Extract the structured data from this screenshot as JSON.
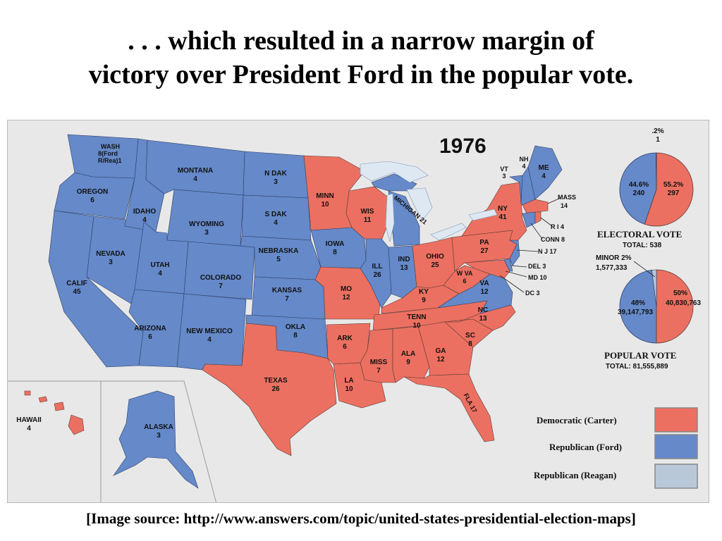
{
  "slide": {
    "title_line1": ". . . which resulted in a narrow margin of",
    "title_line2": "victory over President Ford in the popular vote.",
    "caption": "[Image source:  http://www.answers.com/topic/united-states-presidential-election-maps]"
  },
  "colors": {
    "democratic": "#ec7061",
    "republican_ford": "#6589c9",
    "republican_reagan": "#b9c8d9",
    "water": "#dde8f2",
    "background": "#e8e8e8"
  },
  "map": {
    "year": "1976",
    "states": {
      "wash": [
        "WASH",
        "8(Ford",
        "R/Rea)1"
      ],
      "oregon": [
        "OREGON",
        "6"
      ],
      "calif": [
        "CALIF",
        "45"
      ],
      "nevada": [
        "NEVADA",
        "3"
      ],
      "idaho": [
        "IDAHO",
        "4"
      ],
      "montana": [
        "MONTANA",
        "4"
      ],
      "wyoming": [
        "WYOMING",
        "3"
      ],
      "utah": [
        "UTAH",
        "4"
      ],
      "arizona": [
        "ARIZONA",
        "6"
      ],
      "colorado": [
        "COLORADO",
        "7"
      ],
      "new_mexico": [
        "NEW MEXICO",
        "4"
      ],
      "ndak": [
        "N DAK",
        "3"
      ],
      "sdak": [
        "S DAK",
        "4"
      ],
      "nebraska": [
        "NEBRASKA",
        "5"
      ],
      "kansas": [
        "KANSAS",
        "7"
      ],
      "okla": [
        "OKLA",
        "8"
      ],
      "texas": [
        "TEXAS",
        "26"
      ],
      "minn": [
        "MINN",
        "10"
      ],
      "iowa": [
        "IOWA",
        "8"
      ],
      "mo": [
        "MO",
        "12"
      ],
      "ark": [
        "ARK",
        "6"
      ],
      "la": [
        "LA",
        "10"
      ],
      "wis": [
        "WIS",
        "11"
      ],
      "ill": [
        "ILL",
        "26"
      ],
      "michigan": [
        "MICHIGAN 21"
      ],
      "ind": [
        "IND",
        "13"
      ],
      "ohio": [
        "OHIO",
        "25"
      ],
      "ky": [
        "KY",
        "9"
      ],
      "tenn": [
        "TENN",
        "10"
      ],
      "miss": [
        "MISS",
        "7"
      ],
      "ala": [
        "ALA",
        "9"
      ],
      "ga": [
        "GA",
        "12"
      ],
      "fla": [
        "FLA 17"
      ],
      "sc": [
        "SC",
        "8"
      ],
      "nc": [
        "NC",
        "13"
      ],
      "va": [
        "VA",
        "12"
      ],
      "wva": [
        "W VA",
        "6"
      ],
      "pa": [
        "PA",
        "27"
      ],
      "ny": [
        "NY",
        "41"
      ],
      "vt": [
        "VT",
        "3"
      ],
      "nh": [
        "NH",
        "4"
      ],
      "me": [
        "ME",
        "4"
      ],
      "hawaii": [
        "HAWAII",
        "4"
      ],
      "alaska": [
        "ALASKA",
        "3"
      ]
    },
    "callouts": {
      "mass": [
        "MASS",
        "14"
      ],
      "ri": "R I 4",
      "conn": "CONN 8",
      "nj": "N J 17",
      "del": "DEL 3",
      "md": "MD 10",
      "dc": "DC 3"
    }
  },
  "electoral_pie": {
    "minor_pct": ".2%",
    "minor_votes": "1",
    "republican_pct": "44.6%",
    "republican_votes": "240",
    "democratic_pct": "55.2%",
    "democratic_votes": "297",
    "shares": {
      "democratic": 55.2,
      "republican": 44.6,
      "minor": 0.2
    },
    "title": "ELECTORAL  VOTE",
    "total": "TOTAL:  538"
  },
  "popular_pie": {
    "minor_label": "MINOR  2%",
    "minor_votes": "1,577,333",
    "republican_pct": "48%",
    "republican_votes": "39,147,793",
    "democratic_pct": "50%",
    "democratic_votes": "40,830,763",
    "shares": {
      "democratic": 50,
      "republican": 48,
      "minor": 2
    },
    "title": "POPULAR  VOTE",
    "total": "TOTAL:  81,555,889"
  },
  "legend": {
    "democratic": "Democratic (Carter)",
    "republican_ford": "Republican (Ford)",
    "republican_reagan": "Republican (Reagan)"
  }
}
